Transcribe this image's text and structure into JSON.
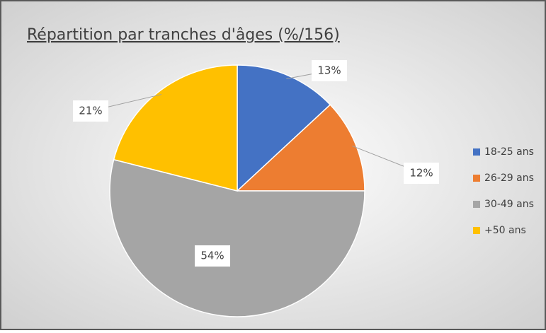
{
  "chart_data": {
    "type": "pie",
    "title": "Répartition par tranches d'âges (%/156)",
    "categories": [
      "18-25 ans",
      "26-29 ans",
      "30-49 ans",
      "+50 ans"
    ],
    "values": [
      13,
      12,
      54,
      21
    ],
    "value_labels": [
      "13%",
      "12%",
      "54%",
      "21%"
    ],
    "colors": [
      "#4472c4",
      "#ed7d31",
      "#a5a5a5",
      "#ffc000"
    ],
    "legend": "right"
  }
}
